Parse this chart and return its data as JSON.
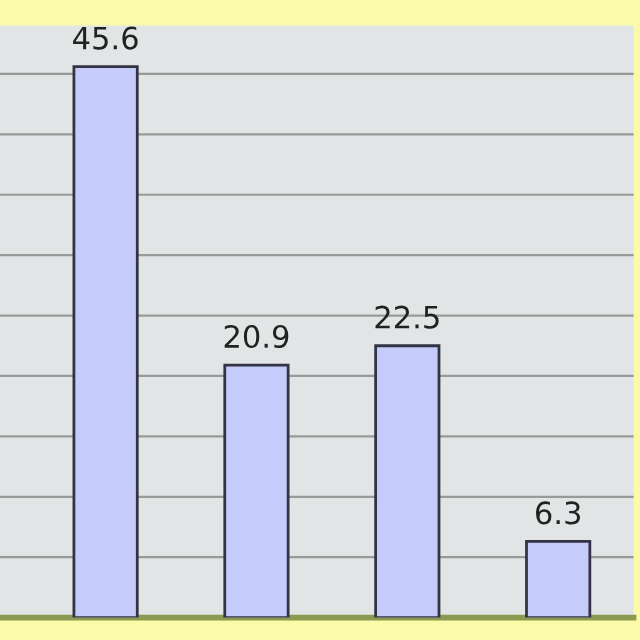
{
  "chart_data": {
    "type": "bar",
    "categories": [
      null,
      null,
      null,
      null
    ],
    "values": [
      45.6,
      20.9,
      22.5,
      6.3
    ],
    "color": "#c5cbfa",
    "data_labels": true,
    "ylim": [
      0,
      49
    ],
    "yticks": [
      {
        "value": 5,
        "label": null
      },
      {
        "value": 10,
        "label": null
      },
      {
        "value": 15,
        "label": null
      },
      {
        "value": 20,
        "label": null
      },
      {
        "value": 25,
        "label": null
      },
      {
        "value": 30,
        "label": null
      },
      {
        "value": 35,
        "label": null
      },
      {
        "value": 40,
        "label": null
      },
      {
        "value": 45,
        "label": null
      }
    ],
    "grid": "y"
  }
}
